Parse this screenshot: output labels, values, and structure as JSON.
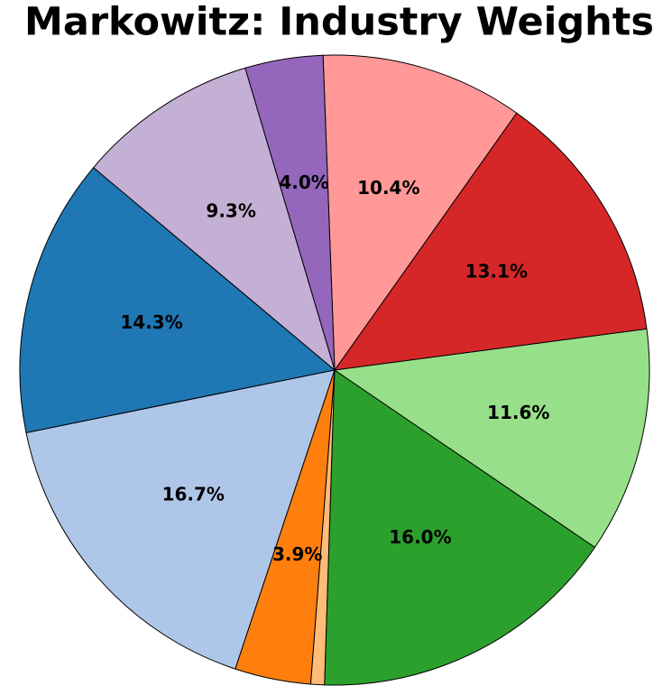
{
  "chart_data": {
    "type": "pie",
    "title": "Markowitz: Industry Weights",
    "values": [
      14.3,
      16.7,
      3.9,
      0.7,
      16.0,
      11.6,
      13.1,
      10.4,
      4.0,
      9.3
    ],
    "value_labels": [
      "14.3%",
      "16.7%",
      "3.9%",
      null,
      "16.0%",
      "11.6%",
      "13.1%",
      "10.4%",
      "4.0%",
      "9.3%"
    ],
    "colors": [
      "#1f77b4",
      "#aec7e8",
      "#ff7f0e",
      "#ffbb78",
      "#2ca02c",
      "#98df8a",
      "#d62728",
      "#ff9896",
      "#9467bd",
      "#c5b0d5"
    ],
    "startangle": 140
  }
}
